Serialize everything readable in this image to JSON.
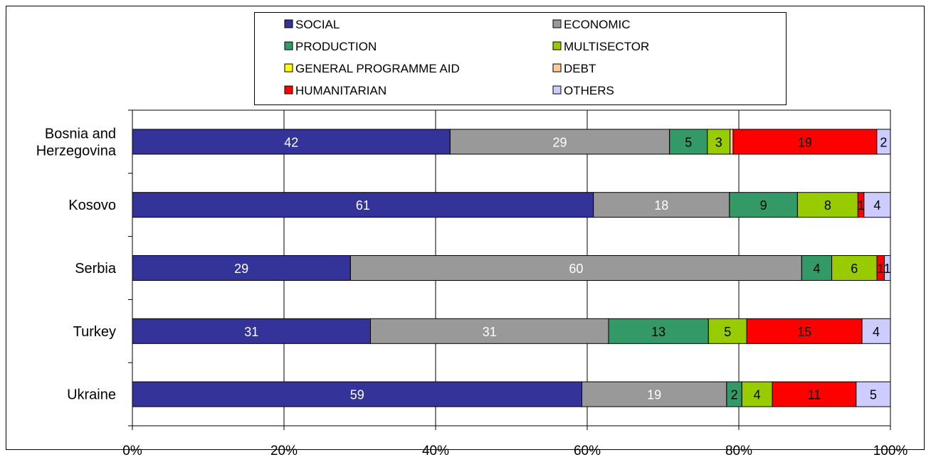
{
  "chart_data": {
    "type": "bar",
    "orientation": "horizontal",
    "stacked": "percent",
    "categories": [
      "Bosnia and Herzegovina",
      "Kosovo",
      "Serbia",
      "Turkey",
      "Ukraine"
    ],
    "category_lines": [
      [
        "Bosnia and",
        "Herzegovina"
      ],
      [
        "Kosovo"
      ],
      [
        "Serbia"
      ],
      [
        "Turkey"
      ],
      [
        "Ukraine"
      ]
    ],
    "series": [
      {
        "name": "SOCIAL",
        "color": "#333399",
        "label_color": "#ffffff",
        "values": [
          42,
          61,
          29,
          31,
          59
        ],
        "display": [
          "42",
          "61",
          "29",
          "31",
          "59"
        ]
      },
      {
        "name": "ECONOMIC",
        "color": "#999999",
        "label_color": "#ffffff",
        "values": [
          29,
          18,
          60,
          31,
          19
        ],
        "display": [
          "29",
          "18",
          "60",
          "31",
          "19"
        ]
      },
      {
        "name": "PRODUCTION",
        "color": "#339966",
        "label_color": "#000000",
        "values": [
          5,
          9,
          4,
          13,
          2
        ],
        "display": [
          "5",
          "9",
          "4",
          "13",
          "2"
        ]
      },
      {
        "name": "MULTISECTOR",
        "color": "#99cc00",
        "label_color": "#000000",
        "values": [
          3,
          8,
          6,
          5,
          4
        ],
        "display": [
          "3",
          "8",
          "6",
          "5",
          "4"
        ]
      },
      {
        "name": "GENERAL PROGRAMME AID",
        "color": "#ffff00",
        "label_color": "#000000",
        "values": [
          0,
          0,
          0,
          0,
          0
        ],
        "display": [
          "",
          "",
          "",
          "",
          ""
        ]
      },
      {
        "name": "DEBT",
        "color": "#ffcc99",
        "label_color": "#000000",
        "values": [
          0.4,
          0,
          0,
          0,
          0
        ],
        "display": [
          "",
          "",
          "",
          "",
          ""
        ]
      },
      {
        "name": "HUMANITARIAN",
        "color": "#ff0000",
        "label_color": "#000000",
        "values": [
          19,
          0.8,
          1,
          15,
          11
        ],
        "display": [
          "19",
          "1",
          "1",
          "15",
          "11"
        ]
      },
      {
        "name": "OTHERS",
        "color": "#ccccff",
        "label_color": "#000000",
        "values": [
          1.8,
          3.5,
          0.8,
          3.7,
          4.5
        ],
        "display": [
          "2",
          "4",
          "1",
          "4",
          "5"
        ]
      }
    ],
    "xlim": [
      0,
      100
    ],
    "x_ticks": [
      0,
      20,
      40,
      60,
      80,
      100
    ],
    "x_tick_labels": [
      "0%",
      "20%",
      "40%",
      "60%",
      "80%",
      "100%"
    ],
    "grid": "vertical",
    "legend_position": "top",
    "title": "",
    "xlabel": "",
    "ylabel": ""
  }
}
